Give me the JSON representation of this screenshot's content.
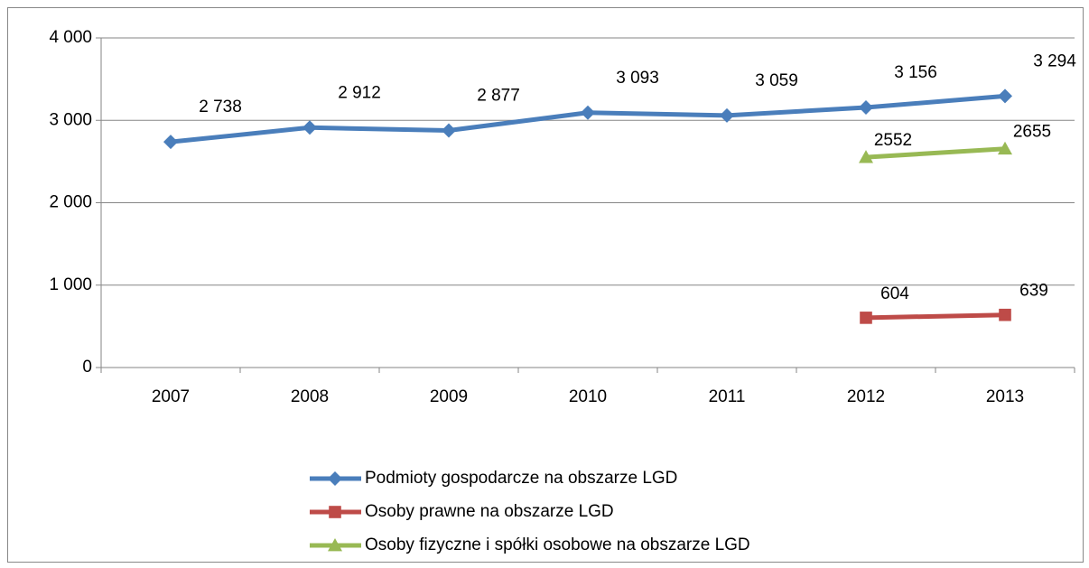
{
  "chart_data": {
    "type": "line",
    "categories": [
      "2007",
      "2008",
      "2009",
      "2010",
      "2011",
      "2012",
      "2013"
    ],
    "series": [
      {
        "name": "Podmioty gospodarcze na obszarze LGD",
        "color": "#4a7ebb",
        "marker": "diamond",
        "values": [
          2738,
          2912,
          2877,
          3093,
          3059,
          3156,
          3294
        ],
        "value_labels": [
          "2 738",
          "2 912",
          "2 877",
          "3 093",
          "3 059",
          "3 156",
          "3 294"
        ]
      },
      {
        "name": "Osoby prawne na obszarze LGD",
        "color": "#be4b48",
        "marker": "square",
        "values": [
          null,
          null,
          null,
          null,
          null,
          604,
          639
        ]
      },
      {
        "name": "Osoby fizyczne i spółki osobowe na obszarze LGD",
        "color": "#98b954",
        "marker": "triangle",
        "values": [
          null,
          null,
          null,
          null,
          null,
          2552,
          2655
        ]
      }
    ],
    "ylim": [
      0,
      4000
    ],
    "yticks": [
      0,
      {
        "value": 1000,
        "label": "1 000"
      },
      {
        "value": 2000,
        "label": "2 000"
      },
      {
        "value": 3000,
        "label": "3 000"
      },
      {
        "value": 4000,
        "label": "4 000"
      }
    ],
    "grid": true,
    "legend": "bottom"
  }
}
